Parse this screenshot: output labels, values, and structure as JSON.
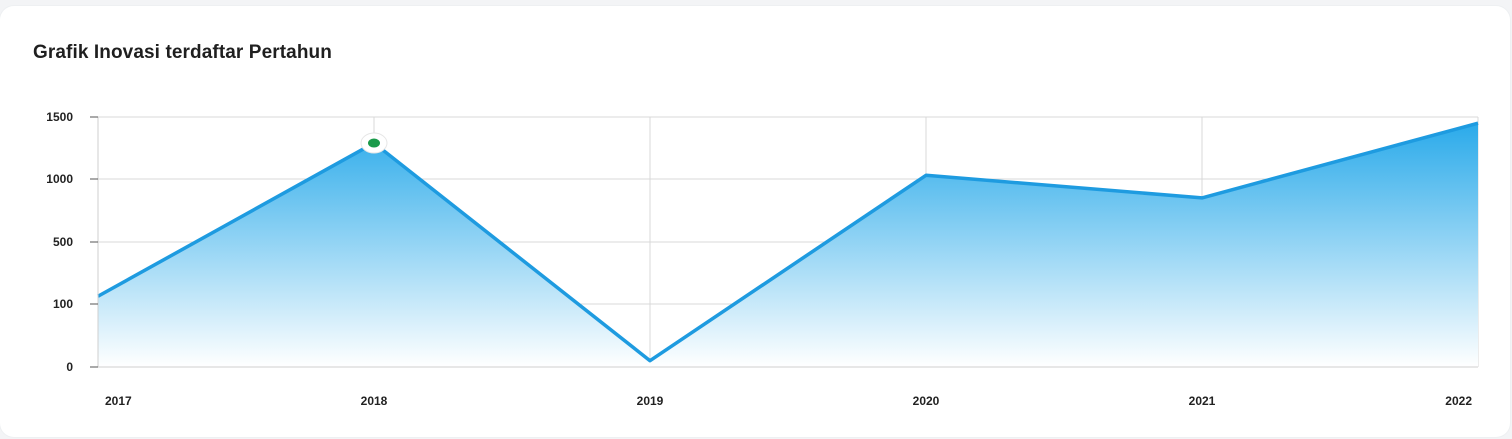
{
  "title": "Grafik Inovasi terdaftar Pertahun",
  "chart_data": {
    "type": "area",
    "x": [
      "2017",
      "2018",
      "2019",
      "2020",
      "2021",
      "2022"
    ],
    "values": [
      150,
      1290,
      10,
      1030,
      850,
      1450
    ],
    "y_ticks": [
      {
        "value": 0,
        "label": "0"
      },
      {
        "value": 100,
        "label": "100"
      },
      {
        "value": 500,
        "label": "500"
      },
      {
        "value": 1000,
        "label": "1000"
      },
      {
        "value": 1500,
        "label": "1500"
      }
    ],
    "ylim": [
      0,
      1500
    ],
    "grid": true,
    "highlighted_point_index": 1,
    "colors": {
      "line": "#1e9be0",
      "fill_top": "#2aaaea",
      "fill_bottom": "#ffffff",
      "marker": "#1a9a4a",
      "grid": "#d9d9d9"
    }
  }
}
